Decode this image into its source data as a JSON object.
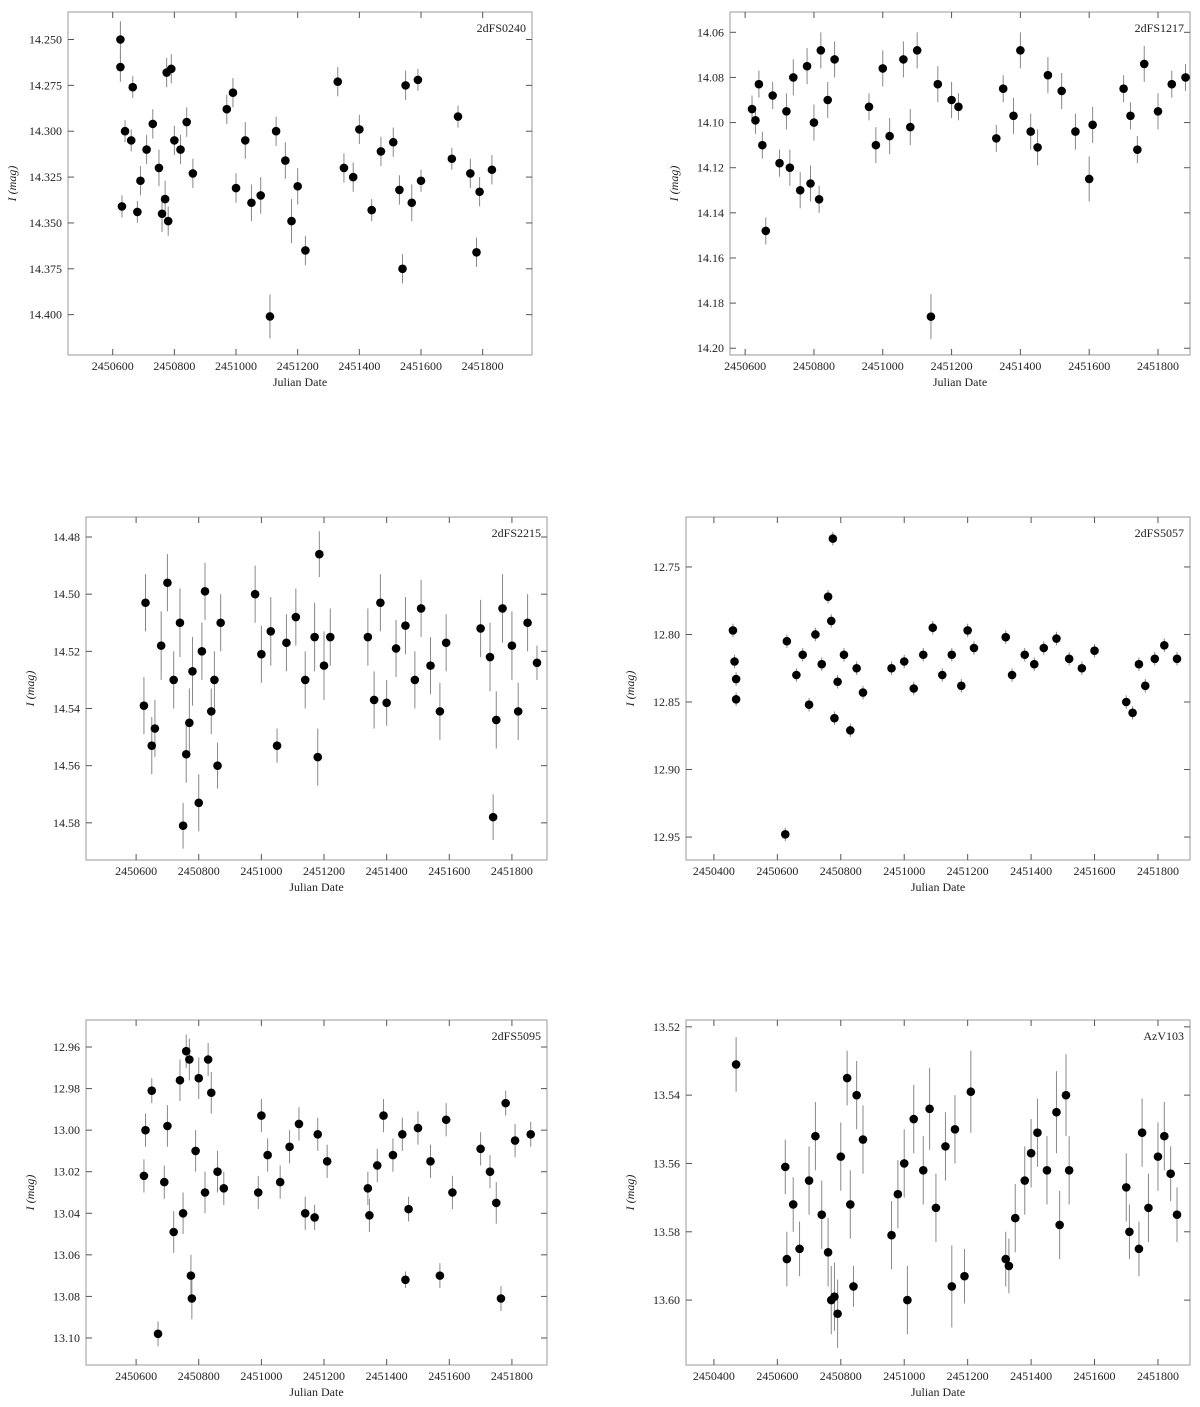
{
  "chart_data": [
    {
      "type": "scatter",
      "title": "2dFS0240",
      "xlabel": "Julian Date",
      "ylabel": "I (mag)",
      "color": "#000000",
      "errorbar_color": "#888888",
      "y_inverted": true,
      "xlim": [
        2450455,
        2451960
      ],
      "ylim": [
        14.235,
        14.422
      ],
      "xticks": [
        2450600,
        2450800,
        2451000,
        2451200,
        2451400,
        2451600,
        2451800
      ],
      "yticks": [
        {
          "value": 14.25,
          "label": "14.250"
        },
        14.275,
        {
          "value": 14.3,
          "label": "14.300"
        },
        14.325,
        {
          "value": 14.35,
          "label": "14.350"
        },
        14.375,
        {
          "value": 14.4,
          "label": "14.400"
        }
      ],
      "x": [
        2450625,
        2450625,
        2450630,
        2450640,
        2450660,
        2450665,
        2450680,
        2450690,
        2450710,
        2450730,
        2450750,
        2450760,
        2450770,
        2450775,
        2450780,
        2450790,
        2450800,
        2450820,
        2450840,
        2450860,
        2450970,
        2450990,
        2451000,
        2451030,
        2451050,
        2451080,
        2451110,
        2451130,
        2451160,
        2451180,
        2451200,
        2451225,
        2451330,
        2451350,
        2451380,
        2451400,
        2451440,
        2451470,
        2451510,
        2451530,
        2451540,
        2451550,
        2451570,
        2451590,
        2451600,
        2451700,
        2451720,
        2451760,
        2451780,
        2451790,
        2451830
      ],
      "values": [
        14.25,
        14.265,
        14.341,
        14.3,
        14.305,
        14.276,
        14.344,
        14.327,
        14.31,
        14.296,
        14.32,
        14.345,
        14.337,
        14.268,
        14.349,
        14.266,
        14.305,
        14.31,
        14.295,
        14.323,
        14.288,
        14.279,
        14.331,
        14.305,
        14.339,
        14.335,
        14.401,
        14.3,
        14.316,
        14.349,
        14.33,
        14.365,
        14.273,
        14.32,
        14.325,
        14.299,
        14.343,
        14.311,
        14.306,
        14.332,
        14.375,
        14.275,
        14.339,
        14.272,
        14.327,
        14.315,
        14.292,
        14.323,
        14.366,
        14.333,
        14.321
      ],
      "errors": [
        0.01,
        0.008,
        0.006,
        0.006,
        0.006,
        0.006,
        0.006,
        0.008,
        0.008,
        0.008,
        0.01,
        0.01,
        0.01,
        0.008,
        0.008,
        0.008,
        0.008,
        0.008,
        0.008,
        0.008,
        0.008,
        0.008,
        0.008,
        0.01,
        0.01,
        0.01,
        0.012,
        0.008,
        0.01,
        0.012,
        0.01,
        0.008,
        0.008,
        0.008,
        0.008,
        0.008,
        0.006,
        0.008,
        0.008,
        0.008,
        0.008,
        0.008,
        0.01,
        0.006,
        0.006,
        0.006,
        0.006,
        0.008,
        0.008,
        0.008,
        0.008
      ]
    },
    {
      "type": "scatter",
      "title": "2dFS1217",
      "xlabel": "Julian Date",
      "ylabel": "I (mag)",
      "color": "#000000",
      "errorbar_color": "#888888",
      "y_inverted": true,
      "xlim": [
        2450556,
        2451893
      ],
      "ylim": [
        14.051,
        14.203
      ],
      "xticks": [
        2450600,
        2450800,
        2451000,
        2451200,
        2451400,
        2451600,
        2451800
      ],
      "yticks": [
        14.06,
        14.08,
        {
          "value": 14.1,
          "label": "14.10"
        },
        14.12,
        14.14,
        14.16,
        14.18,
        {
          "value": 14.2,
          "label": "14.20"
        }
      ],
      "x": [
        2450620,
        2450630,
        2450640,
        2450650,
        2450660,
        2450680,
        2450700,
        2450720,
        2450730,
        2450740,
        2450760,
        2450780,
        2450790,
        2450800,
        2450815,
        2450820,
        2450840,
        2450860,
        2450960,
        2450980,
        2451000,
        2451020,
        2451060,
        2451080,
        2451100,
        2451140,
        2451160,
        2451200,
        2451220,
        2451330,
        2451350,
        2451380,
        2451400,
        2451430,
        2451450,
        2451480,
        2451520,
        2451560,
        2451600,
        2451610,
        2451700,
        2451720,
        2451740,
        2451760,
        2451800,
        2451840,
        2451880
      ],
      "values": [
        14.094,
        14.099,
        14.083,
        14.11,
        14.148,
        14.088,
        14.118,
        14.095,
        14.12,
        14.08,
        14.13,
        14.075,
        14.127,
        14.1,
        14.134,
        14.068,
        14.09,
        14.072,
        14.093,
        14.11,
        14.076,
        14.106,
        14.072,
        14.102,
        14.068,
        14.186,
        14.083,
        14.09,
        14.093,
        14.107,
        14.085,
        14.097,
        14.068,
        14.104,
        14.111,
        14.079,
        14.086,
        14.104,
        14.125,
        14.101,
        14.085,
        14.097,
        14.112,
        14.074,
        14.095,
        14.083,
        14.08
      ],
      "errors": [
        0.006,
        0.006,
        0.006,
        0.006,
        0.006,
        0.006,
        0.006,
        0.008,
        0.008,
        0.008,
        0.008,
        0.008,
        0.008,
        0.008,
        0.006,
        0.008,
        0.008,
        0.008,
        0.006,
        0.008,
        0.008,
        0.008,
        0.008,
        0.008,
        0.008,
        0.01,
        0.008,
        0.008,
        0.006,
        0.006,
        0.006,
        0.008,
        0.008,
        0.008,
        0.008,
        0.008,
        0.008,
        0.008,
        0.01,
        0.008,
        0.006,
        0.006,
        0.006,
        0.008,
        0.008,
        0.006,
        0.006
      ]
    },
    {
      "type": "scatter",
      "title": "2dFS2215",
      "xlabel": "Julian Date",
      "ylabel": "I (mag)",
      "color": "#000000",
      "errorbar_color": "#888888",
      "y_inverted": true,
      "xlim": [
        2450440,
        2451912
      ],
      "ylim": [
        14.473,
        14.593
      ],
      "xticks": [
        2450600,
        2450800,
        2451000,
        2451200,
        2451400,
        2451600,
        2451800
      ],
      "yticks": [
        14.48,
        {
          "value": 14.5,
          "label": "14.50"
        },
        14.52,
        14.54,
        14.56,
        14.58
      ],
      "x": [
        2450625,
        2450630,
        2450650,
        2450660,
        2450680,
        2450700,
        2450720,
        2450740,
        2450750,
        2450760,
        2450770,
        2450780,
        2450800,
        2450810,
        2450820,
        2450840,
        2450850,
        2450860,
        2450870,
        2450980,
        2451000,
        2451030,
        2451050,
        2451080,
        2451110,
        2451140,
        2451170,
        2451180,
        2451185,
        2451200,
        2451220,
        2451340,
        2451360,
        2451380,
        2451400,
        2451430,
        2451460,
        2451490,
        2451510,
        2451540,
        2451570,
        2451590,
        2451700,
        2451730,
        2451740,
        2451750,
        2451770,
        2451800,
        2451820,
        2451850,
        2451880
      ],
      "values": [
        14.539,
        14.503,
        14.553,
        14.547,
        14.518,
        14.496,
        14.53,
        14.51,
        14.581,
        14.556,
        14.545,
        14.527,
        14.573,
        14.52,
        14.499,
        14.541,
        14.53,
        14.56,
        14.51,
        14.5,
        14.521,
        14.513,
        14.553,
        14.517,
        14.508,
        14.53,
        14.515,
        14.557,
        14.486,
        14.525,
        14.515,
        14.515,
        14.537,
        14.503,
        14.538,
        14.519,
        14.511,
        14.53,
        14.505,
        14.525,
        14.541,
        14.517,
        14.512,
        14.522,
        14.578,
        14.544,
        14.505,
        14.518,
        14.541,
        14.51,
        14.524
      ],
      "errors": [
        0.01,
        0.01,
        0.01,
        0.01,
        0.012,
        0.01,
        0.01,
        0.012,
        0.008,
        0.01,
        0.012,
        0.012,
        0.01,
        0.01,
        0.01,
        0.008,
        0.01,
        0.008,
        0.01,
        0.01,
        0.01,
        0.012,
        0.006,
        0.01,
        0.01,
        0.01,
        0.012,
        0.01,
        0.008,
        0.012,
        0.01,
        0.01,
        0.01,
        0.01,
        0.008,
        0.01,
        0.01,
        0.01,
        0.01,
        0.01,
        0.01,
        0.01,
        0.01,
        0.012,
        0.008,
        0.01,
        0.012,
        0.012,
        0.01,
        0.01,
        0.006
      ]
    },
    {
      "type": "scatter",
      "title": "2dFS5057",
      "xlabel": "Julian Date",
      "ylabel": "I (mag)",
      "color": "#000000",
      "errorbar_color": "#888888",
      "y_inverted": true,
      "xlim": [
        2450312,
        2451901
      ],
      "ylim": [
        12.713,
        12.967
      ],
      "xticks": [
        2450400,
        2450600,
        2450800,
        2451000,
        2451200,
        2451400,
        2451600,
        2451800
      ],
      "yticks": [
        12.75,
        {
          "value": 12.8,
          "label": "12.80"
        },
        12.85,
        {
          "value": 12.9,
          "label": "12.90"
        },
        12.95
      ],
      "x": [
        2450460,
        2450465,
        2450470,
        2450470,
        2450625,
        2450630,
        2450660,
        2450680,
        2450700,
        2450720,
        2450740,
        2450760,
        2450770,
        2450775,
        2450780,
        2450790,
        2450810,
        2450830,
        2450850,
        2450870,
        2450960,
        2451000,
        2451030,
        2451060,
        2451090,
        2451120,
        2451150,
        2451180,
        2451200,
        2451220,
        2451320,
        2451340,
        2451380,
        2451410,
        2451440,
        2451480,
        2451520,
        2451560,
        2451600,
        2451700,
        2451720,
        2451740,
        2451760,
        2451790,
        2451820,
        2451860
      ],
      "values": [
        12.797,
        12.82,
        12.848,
        12.833,
        12.948,
        12.805,
        12.83,
        12.815,
        12.852,
        12.8,
        12.822,
        12.772,
        12.79,
        12.729,
        12.862,
        12.835,
        12.815,
        12.871,
        12.825,
        12.843,
        12.825,
        12.82,
        12.84,
        12.815,
        12.795,
        12.83,
        12.815,
        12.838,
        12.797,
        12.81,
        12.802,
        12.83,
        12.815,
        12.822,
        12.81,
        12.803,
        12.818,
        12.825,
        12.812,
        12.85,
        12.858,
        12.822,
        12.838,
        12.818,
        12.808,
        12.818
      ],
      "errors": [
        0.005,
        0.005,
        0.005,
        0.005,
        0.005,
        0.005,
        0.005,
        0.005,
        0.005,
        0.005,
        0.005,
        0.005,
        0.005,
        0.005,
        0.005,
        0.005,
        0.005,
        0.005,
        0.005,
        0.005,
        0.005,
        0.005,
        0.005,
        0.005,
        0.005,
        0.005,
        0.005,
        0.005,
        0.005,
        0.005,
        0.005,
        0.005,
        0.005,
        0.005,
        0.005,
        0.005,
        0.005,
        0.005,
        0.005,
        0.005,
        0.005,
        0.005,
        0.005,
        0.005,
        0.005,
        0.005
      ]
    },
    {
      "type": "scatter",
      "title": "2dFS5095",
      "xlabel": "Julian Date",
      "ylabel": "I (mag)",
      "color": "#000000",
      "errorbar_color": "#888888",
      "y_inverted": true,
      "xlim": [
        2450440,
        2451912
      ],
      "ylim": [
        12.947,
        13.113
      ],
      "xticks": [
        2450600,
        2450800,
        2451000,
        2451200,
        2451400,
        2451600,
        2451800
      ],
      "yticks": [
        12.96,
        12.98,
        {
          "value": 13.0,
          "label": "13.00"
        },
        13.02,
        13.04,
        13.06,
        13.08,
        {
          "value": 13.1,
          "label": "13.10"
        }
      ],
      "x": [
        2450625,
        2450630,
        2450650,
        2450670,
        2450690,
        2450700,
        2450720,
        2450740,
        2450750,
        2450760,
        2450770,
        2450775,
        2450778,
        2450790,
        2450800,
        2450820,
        2450830,
        2450840,
        2450860,
        2450880,
        2450990,
        2451000,
        2451020,
        2451060,
        2451090,
        2451120,
        2451140,
        2451170,
        2451180,
        2451210,
        2451340,
        2451345,
        2451370,
        2451390,
        2451420,
        2451450,
        2451460,
        2451470,
        2451500,
        2451540,
        2451570,
        2451590,
        2451610,
        2451700,
        2451730,
        2451750,
        2451765,
        2451780,
        2451810,
        2451860
      ],
      "values": [
        13.022,
        13.0,
        12.981,
        13.098,
        13.025,
        12.998,
        13.049,
        12.976,
        13.04,
        12.962,
        12.966,
        13.07,
        13.081,
        13.01,
        12.975,
        13.03,
        12.966,
        12.982,
        13.02,
        13.028,
        13.03,
        12.993,
        13.012,
        13.025,
        13.008,
        12.997,
        13.04,
        13.042,
        13.002,
        13.015,
        13.028,
        13.041,
        13.017,
        12.993,
        13.012,
        13.002,
        13.072,
        13.038,
        12.999,
        13.015,
        13.07,
        12.995,
        13.03,
        13.009,
        13.02,
        13.035,
        13.081,
        12.987,
        13.005,
        13.002
      ],
      "errors": [
        0.008,
        0.008,
        0.006,
        0.006,
        0.008,
        0.01,
        0.01,
        0.01,
        0.01,
        0.008,
        0.01,
        0.01,
        0.01,
        0.01,
        0.01,
        0.01,
        0.008,
        0.01,
        0.01,
        0.008,
        0.008,
        0.008,
        0.008,
        0.008,
        0.008,
        0.008,
        0.008,
        0.006,
        0.008,
        0.008,
        0.008,
        0.008,
        0.008,
        0.008,
        0.008,
        0.008,
        0.004,
        0.006,
        0.008,
        0.008,
        0.006,
        0.008,
        0.008,
        0.008,
        0.008,
        0.01,
        0.006,
        0.006,
        0.008,
        0.006
      ]
    },
    {
      "type": "scatter",
      "title": "AzV103",
      "xlabel": "Julian Date",
      "ylabel": "I (mag)",
      "color": "#000000",
      "errorbar_color": "#888888",
      "y_inverted": true,
      "xlim": [
        2450312,
        2451901
      ],
      "ylim": [
        13.518,
        13.619
      ],
      "xticks": [
        2450400,
        2450600,
        2450800,
        2451000,
        2451200,
        2451400,
        2451600,
        2451800
      ],
      "yticks": [
        13.52,
        13.54,
        13.56,
        13.58,
        {
          "value": 13.6,
          "label": "13.60"
        }
      ],
      "x": [
        2450470,
        2450625,
        2450630,
        2450650,
        2450670,
        2450700,
        2450720,
        2450740,
        2450760,
        2450770,
        2450780,
        2450790,
        2450800,
        2450820,
        2450830,
        2450840,
        2450850,
        2450870,
        2450960,
        2450980,
        2451000,
        2451010,
        2451030,
        2451060,
        2451080,
        2451100,
        2451130,
        2451150,
        2451160,
        2451190,
        2451210,
        2451320,
        2451330,
        2451350,
        2451380,
        2451400,
        2451420,
        2451450,
        2451480,
        2451490,
        2451510,
        2451520,
        2451700,
        2451710,
        2451740,
        2451750,
        2451770,
        2451800,
        2451820,
        2451840,
        2451860
      ],
      "values": [
        13.531,
        13.561,
        13.588,
        13.572,
        13.585,
        13.565,
        13.552,
        13.575,
        13.586,
        13.6,
        13.599,
        13.604,
        13.558,
        13.535,
        13.572,
        13.596,
        13.54,
        13.553,
        13.581,
        13.569,
        13.56,
        13.6,
        13.547,
        13.562,
        13.544,
        13.573,
        13.555,
        13.596,
        13.55,
        13.593,
        13.539,
        13.588,
        13.59,
        13.576,
        13.565,
        13.557,
        13.551,
        13.562,
        13.545,
        13.578,
        13.54,
        13.562,
        13.567,
        13.58,
        13.585,
        13.551,
        13.573,
        13.558,
        13.552,
        13.563,
        13.575
      ],
      "errors": [
        0.008,
        0.008,
        0.008,
        0.008,
        0.008,
        0.01,
        0.01,
        0.01,
        0.01,
        0.01,
        0.01,
        0.01,
        0.01,
        0.008,
        0.01,
        0.006,
        0.01,
        0.01,
        0.01,
        0.01,
        0.01,
        0.01,
        0.01,
        0.01,
        0.012,
        0.01,
        0.01,
        0.012,
        0.01,
        0.008,
        0.012,
        0.008,
        0.008,
        0.01,
        0.01,
        0.01,
        0.01,
        0.01,
        0.012,
        0.01,
        0.012,
        0.01,
        0.01,
        0.008,
        0.008,
        0.01,
        0.01,
        0.01,
        0.01,
        0.008,
        0.008
      ]
    }
  ]
}
